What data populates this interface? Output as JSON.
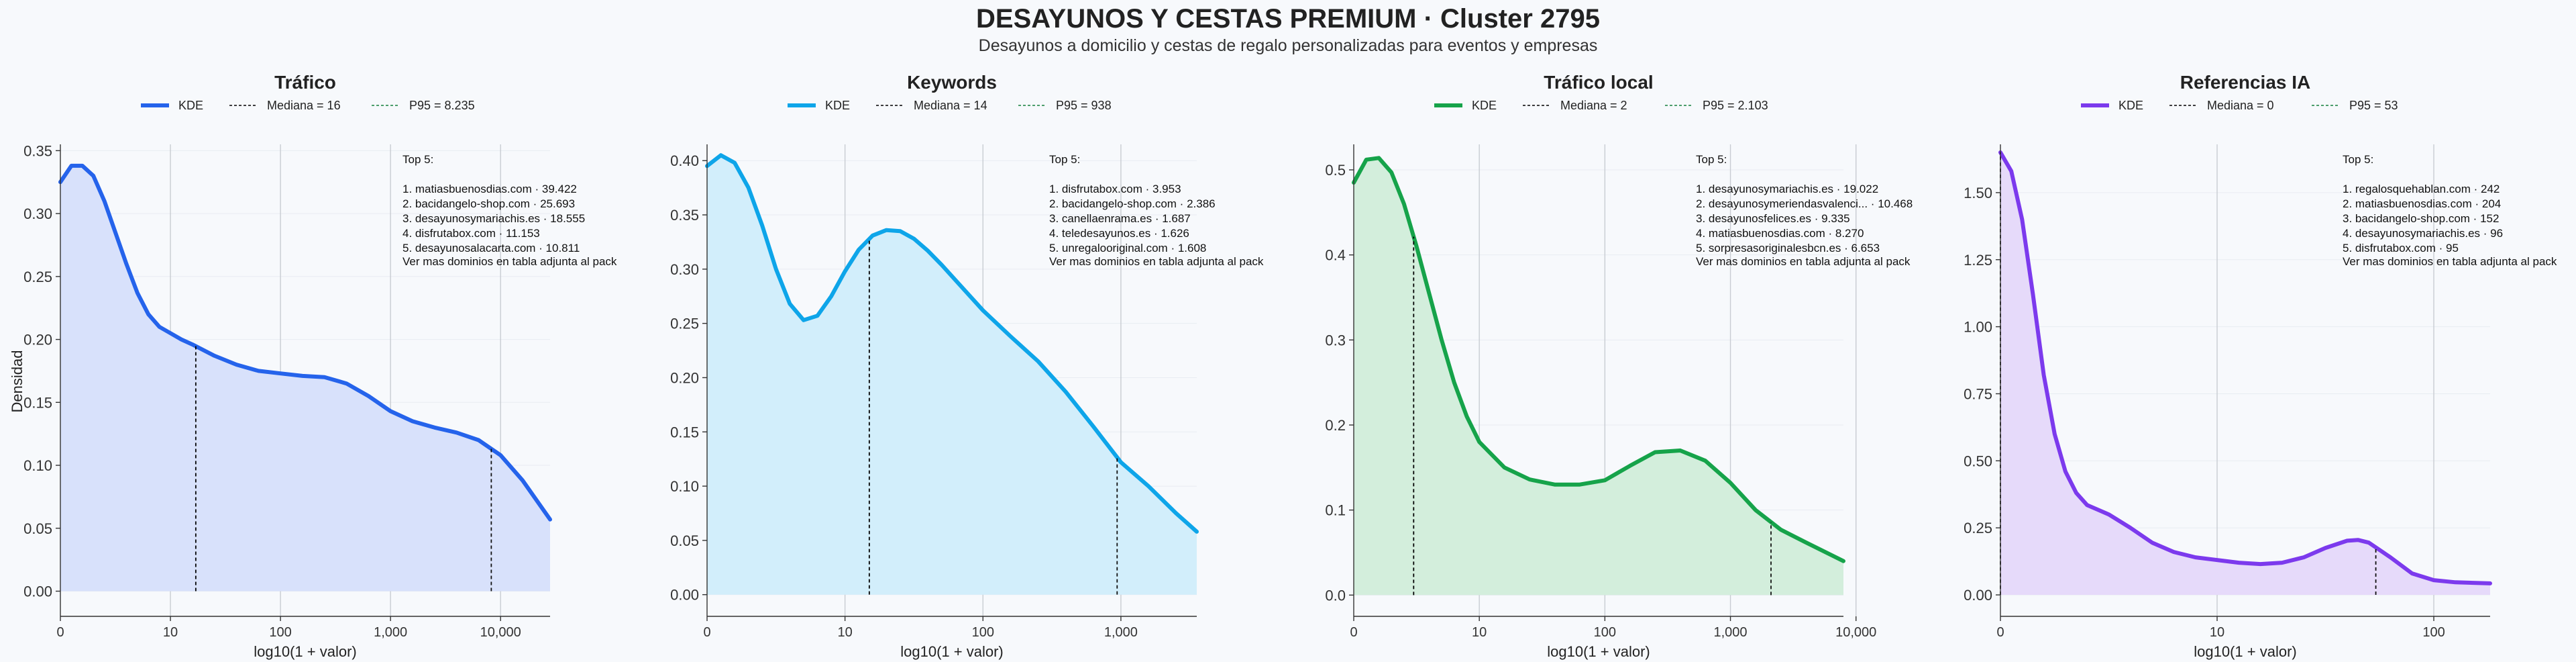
{
  "title": "DESAYUNOS Y CESTAS PREMIUM · Cluster 2795",
  "subtitle": "Desayunos a domicilio y cestas de regalo personalizadas para eventos y empresas",
  "ylabel": "Densidad",
  "legend_kde": "KDE",
  "top5_heading": "Top 5:",
  "footnote": "Ver mas dominios en tabla adjunta al pack",
  "chart_data": [
    {
      "type": "area",
      "title": "Tráfico",
      "xlabel": "log10(1 + valor)",
      "x_scale": "log10(1+x)",
      "xlim": [
        0,
        4.45
      ],
      "ylim": [
        -0.02,
        0.355
      ],
      "xticks": [
        {
          "v": 0,
          "label": "0"
        },
        {
          "v": 1,
          "label": "10"
        },
        {
          "v": 2,
          "label": "100"
        },
        {
          "v": 3,
          "label": "1,000"
        },
        {
          "v": 4,
          "label": "10,000"
        }
      ],
      "yticks": [
        {
          "v": 0,
          "label": "0.00"
        },
        {
          "v": 0.05,
          "label": "0.05"
        },
        {
          "v": 0.1,
          "label": "0.10"
        },
        {
          "v": 0.15,
          "label": "0.15"
        },
        {
          "v": 0.2,
          "label": "0.20"
        },
        {
          "v": 0.25,
          "label": "0.25"
        },
        {
          "v": 0.3,
          "label": "0.30"
        },
        {
          "v": 0.35,
          "label": "0.35"
        }
      ],
      "color": "#2563eb",
      "fill": "#d8e1fb",
      "median": {
        "label": "Mediana = 16",
        "value": 16
      },
      "p95": {
        "label": "P95 = 8.235",
        "value": 8235
      },
      "kde": {
        "x": [
          0,
          0.1,
          0.2,
          0.3,
          0.4,
          0.5,
          0.6,
          0.7,
          0.8,
          0.9,
          1.0,
          1.1,
          1.2,
          1.4,
          1.6,
          1.8,
          2.0,
          2.2,
          2.4,
          2.6,
          2.8,
          3.0,
          3.2,
          3.4,
          3.6,
          3.8,
          4.0,
          4.2,
          4.45
        ],
        "y": [
          0.325,
          0.338,
          0.338,
          0.33,
          0.31,
          0.285,
          0.26,
          0.237,
          0.22,
          0.21,
          0.205,
          0.2,
          0.196,
          0.187,
          0.18,
          0.175,
          0.173,
          0.171,
          0.17,
          0.165,
          0.155,
          0.143,
          0.135,
          0.13,
          0.126,
          0.12,
          0.108,
          0.088,
          0.057
        ]
      },
      "top5": [
        "1. matiasbuenosdias.com · 39.422",
        "2. bacidangelo-shop.com · 25.693",
        "3. desayunosymariachis.es · 18.555",
        "4. disfrutabox.com · 11.153",
        "5. desayunosalacarta.com · 10.811"
      ]
    },
    {
      "type": "area",
      "title": "Keywords",
      "xlabel": "log10(1 + valor)",
      "x_scale": "log10(1+x)",
      "xlim": [
        0,
        3.55
      ],
      "ylim": [
        -0.02,
        0.415
      ],
      "xticks": [
        {
          "v": 0,
          "label": "0"
        },
        {
          "v": 1,
          "label": "10"
        },
        {
          "v": 2,
          "label": "100"
        },
        {
          "v": 3,
          "label": "1,000"
        }
      ],
      "yticks": [
        {
          "v": 0,
          "label": "0.00"
        },
        {
          "v": 0.05,
          "label": "0.05"
        },
        {
          "v": 0.1,
          "label": "0.10"
        },
        {
          "v": 0.15,
          "label": "0.15"
        },
        {
          "v": 0.2,
          "label": "0.20"
        },
        {
          "v": 0.25,
          "label": "0.25"
        },
        {
          "v": 0.3,
          "label": "0.30"
        },
        {
          "v": 0.35,
          "label": "0.35"
        },
        {
          "v": 0.4,
          "label": "0.40"
        }
      ],
      "color": "#0ea5e9",
      "fill": "#d2eefb",
      "median": {
        "label": "Mediana = 14",
        "value": 14
      },
      "p95": {
        "label": "P95 = 938",
        "value": 938
      },
      "kde": {
        "x": [
          0,
          0.1,
          0.2,
          0.3,
          0.4,
          0.5,
          0.6,
          0.7,
          0.8,
          0.9,
          1.0,
          1.1,
          1.2,
          1.3,
          1.4,
          1.5,
          1.6,
          1.7,
          1.8,
          2.0,
          2.2,
          2.4,
          2.6,
          2.8,
          3.0,
          3.2,
          3.4,
          3.55
        ],
        "y": [
          0.395,
          0.405,
          0.398,
          0.375,
          0.34,
          0.3,
          0.268,
          0.253,
          0.257,
          0.275,
          0.298,
          0.318,
          0.331,
          0.336,
          0.335,
          0.328,
          0.317,
          0.304,
          0.29,
          0.262,
          0.238,
          0.215,
          0.187,
          0.155,
          0.122,
          0.1,
          0.075,
          0.058
        ]
      },
      "top5": [
        "1. disfrutabox.com · 3.953",
        "2. bacidangelo-shop.com · 2.386",
        "3. canellaenrama.es · 1.687",
        "4. teledesayunos.es · 1.626",
        "5. unregalooriginal.com · 1.608"
      ]
    },
    {
      "type": "area",
      "title": "Tráfico local",
      "xlabel": "log10(1 + valor)",
      "x_scale": "log10(1+x)",
      "xlim": [
        0,
        3.9
      ],
      "ylim": [
        -0.025,
        0.53
      ],
      "xticks": [
        {
          "v": 0,
          "label": "0"
        },
        {
          "v": 1,
          "label": "10"
        },
        {
          "v": 2,
          "label": "100"
        },
        {
          "v": 3,
          "label": "1,000"
        },
        {
          "v": 4,
          "label": "10,000"
        }
      ],
      "yticks": [
        {
          "v": 0,
          "label": "0.0"
        },
        {
          "v": 0.1,
          "label": "0.1"
        },
        {
          "v": 0.2,
          "label": "0.2"
        },
        {
          "v": 0.3,
          "label": "0.3"
        },
        {
          "v": 0.4,
          "label": "0.4"
        },
        {
          "v": 0.5,
          "label": "0.5"
        }
      ],
      "color": "#16a34a",
      "fill": "#d3eedc",
      "median": {
        "label": "Mediana = 2",
        "value": 2
      },
      "p95": {
        "label": "P95 = 2.103",
        "value": 2103
      },
      "kde": {
        "x": [
          0,
          0.1,
          0.2,
          0.3,
          0.4,
          0.5,
          0.6,
          0.7,
          0.8,
          0.9,
          1.0,
          1.2,
          1.4,
          1.6,
          1.8,
          2.0,
          2.2,
          2.4,
          2.6,
          2.8,
          3.0,
          3.2,
          3.4,
          3.6,
          3.9
        ],
        "y": [
          0.485,
          0.512,
          0.514,
          0.497,
          0.46,
          0.41,
          0.355,
          0.3,
          0.25,
          0.21,
          0.18,
          0.15,
          0.136,
          0.13,
          0.13,
          0.135,
          0.152,
          0.168,
          0.17,
          0.158,
          0.132,
          0.1,
          0.077,
          0.062,
          0.04
        ]
      },
      "top5": [
        "1. desayunosymariachis.es · 19.022",
        "2. desayunosymeriendasvalenci... · 10.468",
        "3. desayunosfelices.es · 9.335",
        "4. matiasbuenosdias.com · 8.270",
        "5. sorpresasoriginalesbcn.es · 6.653"
      ]
    },
    {
      "type": "area",
      "title": "Referencias IA",
      "xlabel": "log10(1 + valor)",
      "x_scale": "log10(1+x)",
      "xlim": [
        0,
        2.26
      ],
      "ylim": [
        -0.08,
        1.68
      ],
      "xticks": [
        {
          "v": 0,
          "label": "0"
        },
        {
          "v": 1,
          "label": "10"
        },
        {
          "v": 2,
          "label": "100"
        }
      ],
      "yticks": [
        {
          "v": 0,
          "label": "0.00"
        },
        {
          "v": 0.25,
          "label": "0.25"
        },
        {
          "v": 0.5,
          "label": "0.50"
        },
        {
          "v": 0.75,
          "label": "0.75"
        },
        {
          "v": 1.0,
          "label": "1.00"
        },
        {
          "v": 1.25,
          "label": "1.25"
        },
        {
          "v": 1.5,
          "label": "1.50"
        }
      ],
      "color": "#7c3aed",
      "fill": "#e6dafa",
      "median": {
        "label": "Mediana = 0",
        "value": 0
      },
      "p95": {
        "label": "P95 = 53",
        "value": 53
      },
      "kde": {
        "x": [
          0,
          0.05,
          0.1,
          0.15,
          0.2,
          0.25,
          0.3,
          0.35,
          0.4,
          0.5,
          0.6,
          0.7,
          0.8,
          0.9,
          1.0,
          1.1,
          1.2,
          1.3,
          1.4,
          1.5,
          1.6,
          1.65,
          1.7,
          1.8,
          1.9,
          2.0,
          2.1,
          2.26
        ],
        "y": [
          1.65,
          1.58,
          1.4,
          1.12,
          0.82,
          0.6,
          0.46,
          0.38,
          0.335,
          0.3,
          0.25,
          0.195,
          0.16,
          0.14,
          0.13,
          0.12,
          0.115,
          0.12,
          0.14,
          0.175,
          0.202,
          0.205,
          0.195,
          0.14,
          0.08,
          0.055,
          0.047,
          0.043
        ]
      },
      "top5": [
        "1. regalosquehablan.com · 242",
        "2. matiasbuenosdias.com · 204",
        "3. bacidangelo-shop.com · 152",
        "4. desayunosymariachis.es · 96",
        "5. disfrutabox.com · 95"
      ]
    }
  ]
}
